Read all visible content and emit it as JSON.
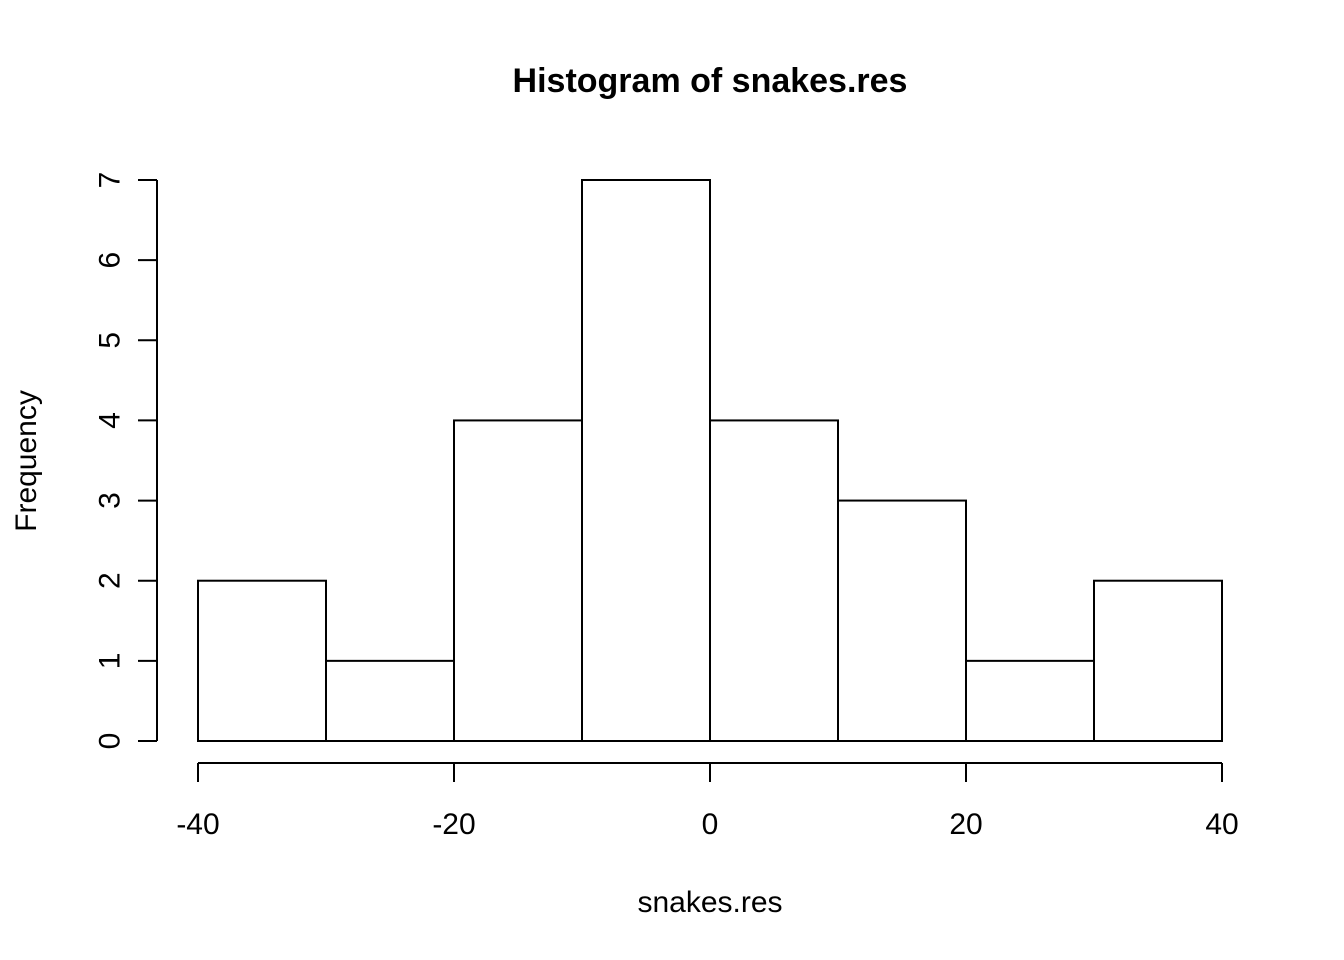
{
  "chart_data": {
    "type": "bar",
    "subtype": "histogram",
    "title": "Histogram of snakes.res",
    "xlabel": "snakes.res",
    "ylabel": "Frequency",
    "bins": [
      {
        "start": -40,
        "end": -30,
        "count": 2
      },
      {
        "start": -30,
        "end": -20,
        "count": 1
      },
      {
        "start": -20,
        "end": -10,
        "count": 4
      },
      {
        "start": -10,
        "end": 0,
        "count": 7
      },
      {
        "start": 0,
        "end": 10,
        "count": 4
      },
      {
        "start": 10,
        "end": 20,
        "count": 3
      },
      {
        "start": 20,
        "end": 30,
        "count": 1
      },
      {
        "start": 30,
        "end": 40,
        "count": 2
      }
    ],
    "xlim": [
      -40,
      40
    ],
    "ylim": [
      0,
      7
    ],
    "x_ticks": [
      -40,
      -20,
      0,
      20,
      40
    ],
    "y_ticks": [
      0,
      1,
      2,
      3,
      4,
      5,
      6,
      7
    ],
    "grid": false,
    "colors": {
      "bar_fill": "#ffffff",
      "bar_stroke": "#000000"
    }
  }
}
